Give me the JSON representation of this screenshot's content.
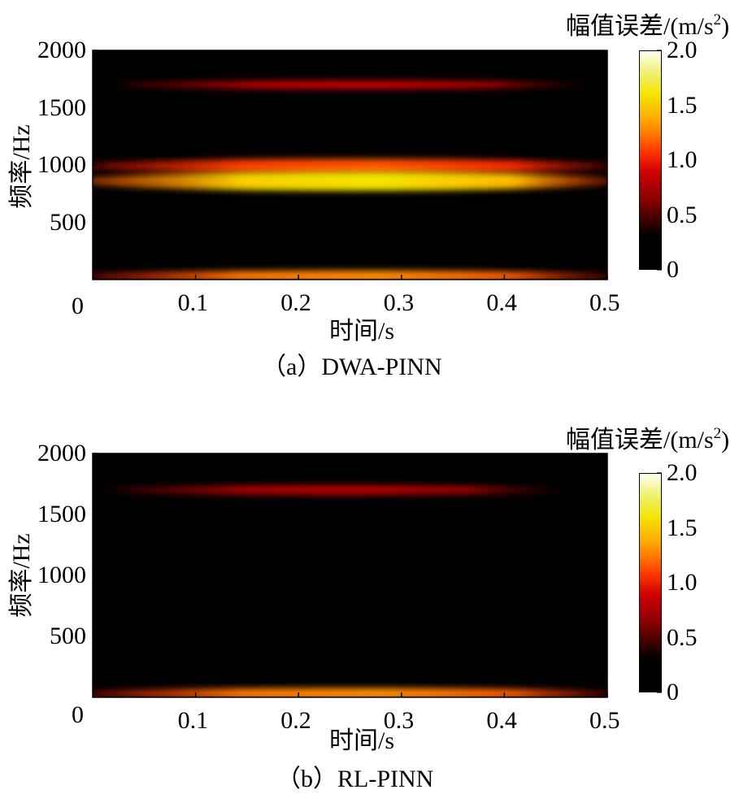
{
  "chart_data": [
    {
      "type": "heatmap",
      "panel_label": "（a）DWA-PINN",
      "xlabel": "时间/s",
      "ylabel": "频率/Hz",
      "colorbar_label": "幅值误差/(m/s",
      "colorbar_label_sup": "2",
      "colorbar_label_end": ")",
      "xlim": [
        0,
        0.5
      ],
      "ylim": [
        0,
        2000
      ],
      "clim": [
        0,
        2.0
      ],
      "xticks": [
        "0.1",
        "0.2",
        "0.3",
        "0.4",
        "0.5"
      ],
      "yticks": [
        "2000",
        "1500",
        "1000",
        "500"
      ],
      "origin_label": "0",
      "cticks": [
        "2.0",
        "1.5",
        "1.0",
        "0.5",
        "0"
      ],
      "bands": [
        {
          "freq": 1700,
          "t_start": 0.04,
          "t_end": 0.46,
          "peak": 0.9,
          "spread": 10
        },
        {
          "freq": 990,
          "t_start": 0.0,
          "t_end": 0.5,
          "peak": 1.15,
          "spread": 18
        },
        {
          "freq": 860,
          "t_start": 0.0,
          "t_end": 0.5,
          "peak": 1.6,
          "spread": 24
        },
        {
          "freq": 30,
          "t_start": 0.0,
          "t_end": 0.5,
          "peak": 1.3,
          "spread": 14
        }
      ]
    },
    {
      "type": "heatmap",
      "panel_label": "（b）RL-PINN",
      "xlabel": "时间/s",
      "ylabel": "频率/Hz",
      "colorbar_label": "幅值误差/(m/s",
      "colorbar_label_sup": "2",
      "colorbar_label_end": ")",
      "xlim": [
        0,
        0.5
      ],
      "ylim": [
        0,
        2000
      ],
      "clim": [
        0,
        2.0
      ],
      "xticks": [
        "0.1",
        "0.2",
        "0.3",
        "0.4",
        "0.5"
      ],
      "yticks": [
        "2000",
        "1500",
        "1000",
        "500"
      ],
      "origin_label": "0",
      "cticks": [
        "2.0",
        "1.5",
        "1.0",
        "0.5",
        "0"
      ],
      "bands": [
        {
          "freq": 1700,
          "t_start": 0.03,
          "t_end": 0.44,
          "peak": 0.8,
          "spread": 12
        },
        {
          "freq": 30,
          "t_start": 0.0,
          "t_end": 0.5,
          "peak": 1.3,
          "spread": 14
        }
      ]
    }
  ]
}
